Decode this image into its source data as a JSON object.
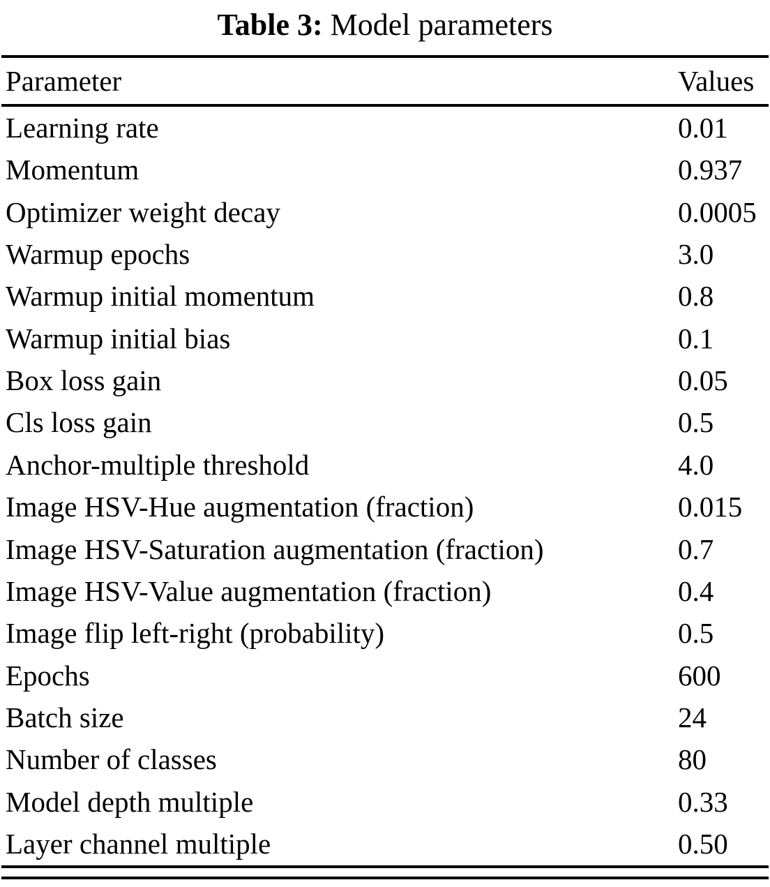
{
  "caption": {
    "label": "Table 3:",
    "title": "Model parameters"
  },
  "table": {
    "headers": {
      "parameter": "Parameter",
      "values": "Values"
    },
    "rows": [
      {
        "parameter": "Learning rate",
        "value": "0.01"
      },
      {
        "parameter": "Momentum",
        "value": "0.937"
      },
      {
        "parameter": "Optimizer weight decay",
        "value": "0.0005"
      },
      {
        "parameter": "Warmup epochs",
        "value": "3.0"
      },
      {
        "parameter": "Warmup initial momentum",
        "value": "0.8"
      },
      {
        "parameter": "Warmup initial bias",
        "value": "0.1"
      },
      {
        "parameter": "Box loss gain",
        "value": "0.05"
      },
      {
        "parameter": "Cls loss gain",
        "value": "0.5"
      },
      {
        "parameter": "Anchor-multiple threshold",
        "value": "4.0"
      },
      {
        "parameter": "Image HSV-Hue augmentation (fraction)",
        "value": "0.015"
      },
      {
        "parameter": "Image HSV-Saturation augmentation (fraction)",
        "value": "0.7"
      },
      {
        "parameter": "Image HSV-Value augmentation (fraction)",
        "value": "0.4"
      },
      {
        "parameter": "Image flip left-right (probability)",
        "value": "0.5"
      },
      {
        "parameter": "Epochs",
        "value": "600"
      },
      {
        "parameter": "Batch size",
        "value": "24"
      },
      {
        "parameter": "Number of classes",
        "value": "80"
      },
      {
        "parameter": "Model depth multiple",
        "value": "0.33"
      },
      {
        "parameter": "Layer channel multiple",
        "value": "0.50"
      }
    ]
  },
  "colors": {
    "background": "#ffffff",
    "text": "#000000",
    "rule": "#000000"
  }
}
